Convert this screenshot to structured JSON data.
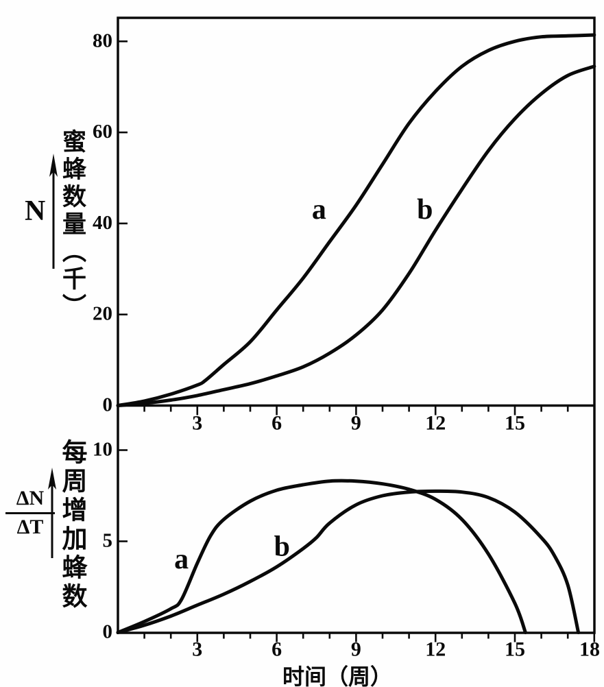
{
  "figure_background": "#fefefe",
  "ink_color": "#0a0a0a",
  "x_axis_title": "时间（周）",
  "chart_data": [
    {
      "id": "bee-population",
      "type": "line",
      "title": "",
      "xlabel": "时间（周）",
      "ylabel": "蜜蜂数量（千）",
      "y_axis_symbol": "N",
      "xlim": [
        0,
        18
      ],
      "ylim": [
        0,
        85
      ],
      "x_ticks": [
        3,
        6,
        9,
        12,
        15
      ],
      "x_minor_tick_step": 1,
      "y_ticks": [
        0,
        20,
        40,
        60,
        80
      ],
      "grid": false,
      "legend_position": "none",
      "series": [
        {
          "name": "a",
          "label": "a",
          "label_pos": [
            7.6,
            43
          ],
          "points": [
            [
              0,
              0
            ],
            [
              1,
              1
            ],
            [
              2,
              2.5
            ],
            [
              3,
              4.5
            ],
            [
              3.3,
              5.5
            ],
            [
              4,
              9
            ],
            [
              5,
              14
            ],
            [
              6,
              21
            ],
            [
              7,
              28
            ],
            [
              8,
              36
            ],
            [
              9,
              44
            ],
            [
              10,
              53
            ],
            [
              11,
              62
            ],
            [
              12,
              69
            ],
            [
              13,
              74.5
            ],
            [
              14,
              78
            ],
            [
              15,
              80
            ],
            [
              16,
              81
            ],
            [
              17,
              81.2
            ],
            [
              18,
              81.4
            ]
          ]
        },
        {
          "name": "b",
          "label": "b",
          "label_pos": [
            11.6,
            43
          ],
          "points": [
            [
              0,
              0
            ],
            [
              1,
              0.5
            ],
            [
              2,
              1.2
            ],
            [
              3,
              2.2
            ],
            [
              4,
              3.5
            ],
            [
              5,
              4.8
            ],
            [
              6,
              6.5
            ],
            [
              7,
              8.5
            ],
            [
              8,
              11.5
            ],
            [
              9,
              15.5
            ],
            [
              10,
              21
            ],
            [
              11,
              29
            ],
            [
              12,
              38.5
            ],
            [
              13,
              47.5
            ],
            [
              14,
              56
            ],
            [
              15,
              63
            ],
            [
              16,
              68.5
            ],
            [
              17,
              72.5
            ],
            [
              18,
              74.5
            ]
          ]
        }
      ]
    },
    {
      "id": "weekly-increase",
      "type": "line",
      "title": "",
      "xlabel": "时间（周）",
      "ylabel": "每周增加蜂数",
      "y_axis_symbol_numerator": "ΔN",
      "y_axis_symbol_denominator": "ΔT",
      "xlim": [
        0,
        18
      ],
      "ylim": [
        0,
        11
      ],
      "x_ticks": [
        3,
        6,
        9,
        12,
        15,
        18
      ],
      "x_minor_tick_step": 1,
      "y_ticks": [
        0,
        5,
        10
      ],
      "grid": false,
      "legend_position": "none",
      "series": [
        {
          "name": "a",
          "label": "a",
          "label_pos": [
            2.4,
            4.0
          ],
          "points": [
            [
              0,
              0
            ],
            [
              1,
              0.6
            ],
            [
              2,
              1.3
            ],
            [
              2.4,
              1.8
            ],
            [
              3,
              3.8
            ],
            [
              3.5,
              5.3
            ],
            [
              4,
              6.2
            ],
            [
              5,
              7.2
            ],
            [
              6,
              7.8
            ],
            [
              7,
              8.1
            ],
            [
              8,
              8.3
            ],
            [
              9,
              8.3
            ],
            [
              10,
              8.15
            ],
            [
              11,
              7.85
            ],
            [
              12,
              7.3
            ],
            [
              13,
              6.2
            ],
            [
              14,
              4.3
            ],
            [
              15,
              1.6
            ],
            [
              15.4,
              0
            ]
          ]
        },
        {
          "name": "b",
          "label": "b",
          "label_pos": [
            6.2,
            4.7
          ],
          "points": [
            [
              0,
              0
            ],
            [
              1,
              0.4
            ],
            [
              2,
              0.9
            ],
            [
              3,
              1.5
            ],
            [
              4,
              2.1
            ],
            [
              5,
              2.8
            ],
            [
              6,
              3.6
            ],
            [
              7,
              4.6
            ],
            [
              7.5,
              5.2
            ],
            [
              8,
              6.0
            ],
            [
              9,
              7.0
            ],
            [
              10,
              7.5
            ],
            [
              11,
              7.7
            ],
            [
              12,
              7.75
            ],
            [
              13,
              7.7
            ],
            [
              14,
              7.4
            ],
            [
              15,
              6.6
            ],
            [
              16,
              5.2
            ],
            [
              16.5,
              4.2
            ],
            [
              17,
              2.6
            ],
            [
              17.4,
              0
            ]
          ]
        }
      ]
    }
  ]
}
